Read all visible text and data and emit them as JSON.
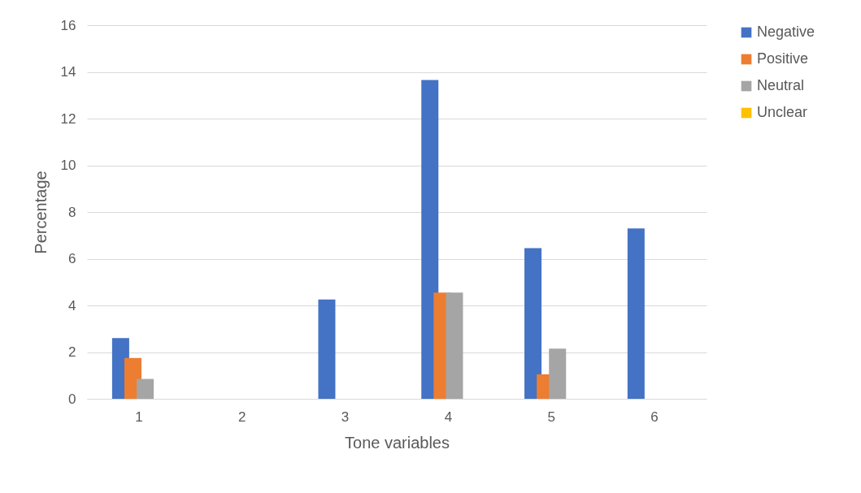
{
  "chart_data": {
    "type": "bar",
    "xlabel": "Tone variables",
    "ylabel": "Percentage",
    "categories": [
      "1",
      "2",
      "3",
      "4",
      "5",
      "6"
    ],
    "series": [
      {
        "name": "Negative",
        "color": "#4472c4",
        "values": [
          2.6,
          0,
          4.25,
          13.65,
          6.45,
          7.3
        ]
      },
      {
        "name": "Positive",
        "color": "#ed7d31",
        "values": [
          1.75,
          0,
          0,
          4.55,
          1.05,
          0
        ]
      },
      {
        "name": "Neutral",
        "color": "#a5a5a5",
        "values": [
          0.85,
          0,
          0,
          4.55,
          2.15,
          0
        ]
      },
      {
        "name": "Unclear",
        "color": "#ffc000",
        "values": [
          0,
          0,
          0,
          0,
          0,
          0
        ]
      }
    ],
    "ylim": [
      0,
      16
    ],
    "yticks": [
      0,
      2,
      4,
      6,
      8,
      10,
      12,
      14,
      16
    ],
    "grid": "y",
    "legend": "right"
  }
}
